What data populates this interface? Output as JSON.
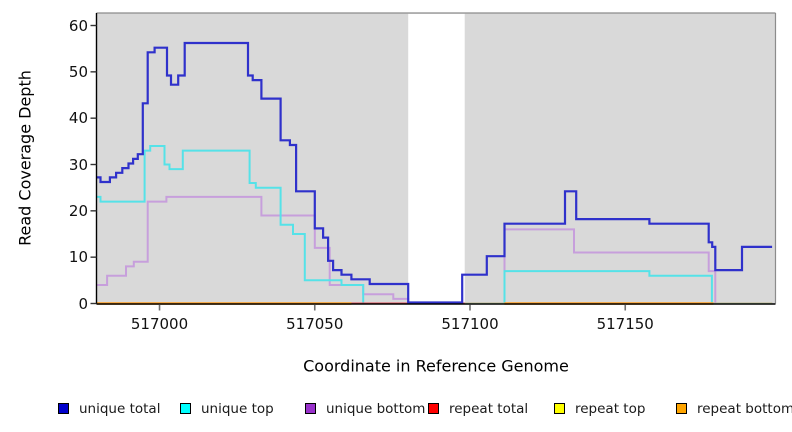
{
  "chart_data": {
    "type": "line",
    "step": "after",
    "title": "",
    "xlabel": "Coordinate in Reference Genome",
    "ylabel": "Read Coverage Depth",
    "xlim": [
      516979.7,
      517198.4
    ],
    "ylim": [
      0,
      62.7
    ],
    "x_ticks": [
      "517000",
      "517050",
      "517100",
      "517150"
    ],
    "x_tick_values": [
      517000,
      517050,
      517100,
      517150
    ],
    "y_ticks": [
      "0",
      "10",
      "20",
      "30",
      "40",
      "50",
      "60"
    ],
    "y_tick_values": [
      0,
      10,
      20,
      30,
      40,
      50,
      60
    ],
    "grid": false,
    "panel_bg": "#d9d9d9",
    "panel_border_color": "#8c8c8c",
    "axis_color": "#000000",
    "no_data_band": {
      "x1": 517080.1,
      "x2": 517098.3,
      "color": "#ffffff"
    },
    "series": [
      {
        "name": "unique total",
        "legend_color": "#0000cd",
        "line_color": "#2f31cb",
        "points": [
          [
            516979.7,
            27
          ],
          [
            516981,
            26
          ],
          [
            516984,
            27
          ],
          [
            516986,
            28
          ],
          [
            516988,
            29
          ],
          [
            516990,
            30
          ],
          [
            516991.5,
            31
          ],
          [
            516993,
            32
          ],
          [
            516994.6,
            43
          ],
          [
            516996.2,
            54
          ],
          [
            516998.4,
            55
          ],
          [
            517002.4,
            49
          ],
          [
            517003.7,
            47
          ],
          [
            517006,
            49
          ],
          [
            517008.1,
            56
          ],
          [
            517028.5,
            49
          ],
          [
            517030,
            48
          ],
          [
            517032.8,
            44
          ],
          [
            517039,
            35
          ],
          [
            517042,
            34
          ],
          [
            517044,
            24
          ],
          [
            517050,
            16
          ],
          [
            517052.7,
            14
          ],
          [
            517054.3,
            9
          ],
          [
            517055.9,
            7
          ],
          [
            517058.6,
            6
          ],
          [
            517061.8,
            5
          ],
          [
            517067.7,
            4
          ],
          [
            517080.1,
            0
          ],
          [
            517097.5,
            6
          ],
          [
            517105.4,
            10
          ],
          [
            517111.1,
            17
          ],
          [
            517130.6,
            24
          ],
          [
            517134.2,
            18
          ],
          [
            517157.8,
            17
          ],
          [
            517176.9,
            13
          ],
          [
            517178,
            12
          ],
          [
            517179,
            7
          ],
          [
            517187.6,
            12
          ],
          [
            517197.3,
            12
          ]
        ]
      },
      {
        "name": "unique top",
        "legend_color": "#00ffff",
        "line_color": "#55e2e8",
        "points": [
          [
            516979.7,
            23
          ],
          [
            516981,
            22
          ],
          [
            516995.2,
            33
          ],
          [
            516997,
            34
          ],
          [
            517001.6,
            30
          ],
          [
            517003.2,
            29
          ],
          [
            517007.5,
            33
          ],
          [
            517029,
            26
          ],
          [
            517031,
            25
          ],
          [
            517039,
            17
          ],
          [
            517043,
            15
          ],
          [
            517046.8,
            5
          ],
          [
            517058.6,
            4
          ],
          [
            517065.6,
            0
          ],
          [
            517111.1,
            7
          ],
          [
            517157.8,
            6
          ],
          [
            517177.9,
            0
          ],
          [
            517197.3,
            0
          ]
        ]
      },
      {
        "name": "unique bottom",
        "legend_color": "#9932cc",
        "line_color": "#c79fdc",
        "points": [
          [
            516979.7,
            4
          ],
          [
            516983.1,
            6
          ],
          [
            516989.2,
            8
          ],
          [
            516991.7,
            9
          ],
          [
            516996.2,
            22
          ],
          [
            517002.2,
            23
          ],
          [
            517032.8,
            19
          ],
          [
            517050,
            12
          ],
          [
            517054.8,
            4
          ],
          [
            517065.6,
            2
          ],
          [
            517075.3,
            1
          ],
          [
            517080.1,
            0
          ],
          [
            517111.1,
            16
          ],
          [
            517133.5,
            11
          ],
          [
            517176.9,
            7
          ],
          [
            517179,
            0
          ],
          [
            517197.3,
            0
          ]
        ]
      },
      {
        "name": "repeat total",
        "legend_color": "#ff0000",
        "line_color": "#e04a52",
        "points": [
          [
            516979.7,
            0
          ],
          [
            517197.3,
            0
          ]
        ],
        "note": "value 0 across plot; visible only ~517062-517098 where not covered by other zero lines"
      },
      {
        "name": "repeat top",
        "legend_color": "#ffff00",
        "line_color": "#b7dda6",
        "value": 0,
        "visible_segments": [
          [
            517098.3,
            517111.1
          ],
          [
            517178.4,
            517197.3
          ]
        ],
        "note": "value 0; thin pale yellow-green line visible where orange absent"
      },
      {
        "name": "repeat bottom",
        "legend_color": "#ffa500",
        "line_color": "#ff9d1e",
        "value": 0,
        "visible_segments": [
          [
            516979.7,
            517061.8
          ],
          [
            517111.1,
            517178.4
          ]
        ],
        "note": "value 0; orange baseline segments"
      }
    ],
    "legend": {
      "position": "bottom",
      "items": [
        {
          "label": "unique total",
          "fill": "#0000cd"
        },
        {
          "label": "unique top",
          "fill": "#00ffff"
        },
        {
          "label": "unique bottom",
          "fill": "#9932cc"
        },
        {
          "label": "repeat total",
          "fill": "#ff0000"
        },
        {
          "label": "repeat top",
          "fill": "#ffff00"
        },
        {
          "label": "repeat bottom",
          "fill": "#ffa500"
        }
      ]
    }
  }
}
